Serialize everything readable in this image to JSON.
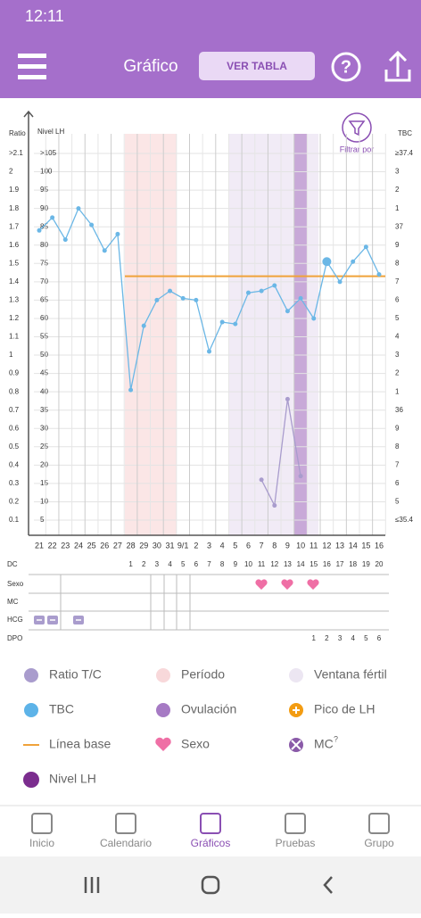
{
  "status_bar": {
    "time": "12:11"
  },
  "header": {
    "title": "Gráfico",
    "button": "VER TABLA"
  },
  "chart": {
    "filter_label": "Filtrar por",
    "axis_titles": {
      "ratio": "Ratio",
      "lh": "Nivel LH",
      "temp": "TBC"
    },
    "ratio_ticks": [
      ">2.1",
      "2",
      "1.9",
      "1.8",
      "1.7",
      "1.6",
      "1.5",
      "1.4",
      "1.3",
      "1.2",
      "1.1",
      "1",
      "0.9",
      "0.8",
      "0.7",
      "0.6",
      "0.5",
      "0.4",
      "0.3",
      "0.2",
      "0.1"
    ],
    "lh_ticks": [
      ">105",
      "100",
      "95",
      "90",
      "85",
      "80",
      "75",
      "70",
      "65",
      "60",
      "55",
      "50",
      "45",
      "40",
      "35",
      "30",
      "25",
      "20",
      "15",
      "10",
      "5"
    ],
    "temp_ticks": [
      "≥37.4",
      "3",
      "2",
      "1",
      "37",
      "9",
      "8",
      "7",
      "6",
      "5",
      "4",
      "3",
      "2",
      "1",
      "36",
      "9",
      "8",
      "7",
      "6",
      "5",
      "≤35.4"
    ],
    "temp_range": [
      35.4,
      37.4
    ],
    "lh_range": [
      5,
      105
    ],
    "days": [
      "21",
      "22",
      "23",
      "24",
      "25",
      "26",
      "27",
      "28",
      "29",
      "30",
      "31",
      "9/1",
      "2",
      "3",
      "4",
      "5",
      "6",
      "7",
      "8",
      "9",
      "10",
      "11",
      "12",
      "13",
      "14",
      "15",
      "16"
    ],
    "temperature": [
      36.98,
      37.05,
      36.93,
      37.1,
      37.01,
      36.87,
      36.96,
      36.11,
      36.46,
      36.6,
      36.65,
      36.61,
      36.6,
      36.32,
      36.48,
      36.47,
      36.64,
      36.65,
      36.68,
      36.54,
      36.61,
      36.5,
      36.81,
      36.7,
      36.81,
      36.89,
      36.74
    ],
    "baseline": 36.73,
    "lh": [
      null,
      null,
      null,
      null,
      null,
      null,
      null,
      null,
      null,
      null,
      null,
      null,
      null,
      null,
      null,
      null,
      null,
      16,
      9,
      38,
      17,
      null,
      null,
      null,
      null,
      null,
      null
    ],
    "row_labels": [
      "DC",
      "Sexo",
      "MC",
      "HCG",
      "DPO"
    ],
    "cycle_days": [
      null,
      null,
      null,
      null,
      null,
      null,
      null,
      "1",
      "2",
      "3",
      "4",
      "5",
      "6",
      "7",
      "8",
      "9",
      "10",
      "11",
      "12",
      "13",
      "14",
      "15",
      "16",
      "17",
      "18",
      "19",
      "20"
    ],
    "dpo": [
      null,
      null,
      null,
      null,
      null,
      null,
      null,
      null,
      null,
      null,
      null,
      null,
      null,
      null,
      null,
      null,
      null,
      null,
      null,
      null,
      null,
      "1",
      "2",
      "3",
      "4",
      "5",
      "6"
    ]
  },
  "legend": [
    "Ratio T/C",
    "Período",
    "Ventana fértil",
    "TBC",
    "Ovulación",
    "Pico de LH",
    "Línea base",
    "Sexo",
    "MC",
    "Nivel LH"
  ],
  "legend_superscript": "?",
  "nav": [
    "Inicio",
    "Calendario",
    "Gráficos",
    "Pruebas",
    "Grupo"
  ]
}
